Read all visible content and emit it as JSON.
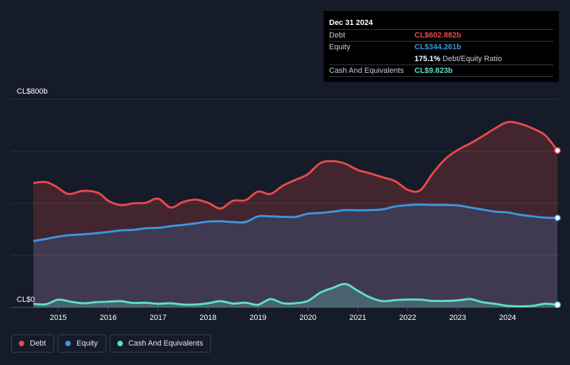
{
  "tooltip": {
    "date": "Dec 31 2024",
    "rows": [
      {
        "name": "Debt",
        "value": "CL$602.882b",
        "color": "#e84a4a"
      },
      {
        "name": "Equity",
        "value": "CL$344.261b",
        "color": "#3a97e0"
      },
      {
        "name": "",
        "value": "175.1%",
        "extra": "Debt/Equity Ratio",
        "color": "#ffffff"
      },
      {
        "name": "Cash And Equivalents",
        "value": "CL$9.823b",
        "color": "#5ee0c6"
      }
    ]
  },
  "legend": [
    {
      "label": "Debt",
      "color": "#e84a4a"
    },
    {
      "label": "Equity",
      "color": "#3a97e0"
    },
    {
      "label": "Cash And Equivalents",
      "color": "#5ee0c6"
    }
  ],
  "chart_data": {
    "type": "area",
    "y_unit_labels": {
      "top": "CL$800b",
      "bottom": "CL$0"
    },
    "ylim": [
      0,
      800
    ],
    "x_ticks": [
      "2015",
      "2016",
      "2017",
      "2018",
      "2019",
      "2020",
      "2021",
      "2022",
      "2023",
      "2024"
    ],
    "grid": true,
    "series": [
      {
        "name": "Debt",
        "color": "#e84a4a",
        "x": [
          2014.5,
          2014.75,
          2014.95,
          2015.2,
          2015.5,
          2015.8,
          2016.0,
          2016.25,
          2016.5,
          2016.75,
          2017.0,
          2017.25,
          2017.5,
          2017.75,
          2018.0,
          2018.25,
          2018.5,
          2018.75,
          2019.0,
          2019.25,
          2019.5,
          2019.75,
          2020.0,
          2020.25,
          2020.5,
          2020.75,
          2021.0,
          2021.25,
          2021.5,
          2021.75,
          2022.0,
          2022.25,
          2022.5,
          2022.75,
          2023.0,
          2023.25,
          2023.5,
          2023.75,
          2024.0,
          2024.25,
          2024.5,
          2024.75,
          2025.0
        ],
        "values": [
          478,
          482,
          465,
          436,
          448,
          440,
          410,
          393,
          400,
          402,
          418,
          384,
          405,
          414,
          402,
          380,
          410,
          412,
          445,
          436,
          468,
          490,
          512,
          555,
          562,
          552,
          528,
          515,
          500,
          485,
          452,
          450,
          515,
          570,
          605,
          630,
          658,
          688,
          712,
          706,
          688,
          662,
          603
        ]
      },
      {
        "name": "Equity",
        "color": "#3a97e0",
        "x": [
          2014.5,
          2014.75,
          2015.0,
          2015.25,
          2015.5,
          2015.75,
          2016.0,
          2016.25,
          2016.5,
          2016.75,
          2017.0,
          2017.25,
          2017.5,
          2017.75,
          2018.0,
          2018.25,
          2018.5,
          2018.75,
          2019.0,
          2019.25,
          2019.5,
          2019.75,
          2020.0,
          2020.25,
          2020.5,
          2020.75,
          2021.0,
          2021.25,
          2021.5,
          2021.75,
          2022.0,
          2022.25,
          2022.5,
          2022.75,
          2023.0,
          2023.25,
          2023.5,
          2023.75,
          2024.0,
          2024.25,
          2024.5,
          2024.75,
          2025.0
        ],
        "values": [
          255,
          263,
          272,
          278,
          281,
          285,
          290,
          296,
          298,
          304,
          306,
          312,
          317,
          323,
          330,
          331,
          328,
          328,
          350,
          350,
          348,
          348,
          360,
          363,
          368,
          374,
          373,
          374,
          377,
          388,
          393,
          395,
          394,
          394,
          392,
          384,
          376,
          368,
          365,
          356,
          350,
          345,
          344
        ]
      },
      {
        "name": "Cash And Equivalents",
        "color": "#5ee0c6",
        "x": [
          2014.5,
          2014.75,
          2015.0,
          2015.25,
          2015.5,
          2015.75,
          2016.0,
          2016.25,
          2016.5,
          2016.75,
          2017.0,
          2017.25,
          2017.5,
          2017.75,
          2018.0,
          2018.25,
          2018.5,
          2018.75,
          2019.0,
          2019.25,
          2019.5,
          2019.75,
          2020.0,
          2020.25,
          2020.5,
          2020.75,
          2021.0,
          2021.25,
          2021.5,
          2021.75,
          2022.0,
          2022.25,
          2022.5,
          2022.75,
          2023.0,
          2023.25,
          2023.5,
          2023.75,
          2024.0,
          2024.25,
          2024.5,
          2024.75,
          2025.0
        ],
        "values": [
          14,
          12,
          30,
          22,
          16,
          20,
          22,
          24,
          17,
          18,
          14,
          16,
          11,
          11,
          16,
          24,
          15,
          18,
          10,
          32,
          16,
          16,
          25,
          57,
          75,
          90,
          64,
          38,
          24,
          28,
          30,
          30,
          25,
          25,
          27,
          32,
          20,
          14,
          6,
          4,
          6,
          14,
          10
        ]
      }
    ]
  }
}
